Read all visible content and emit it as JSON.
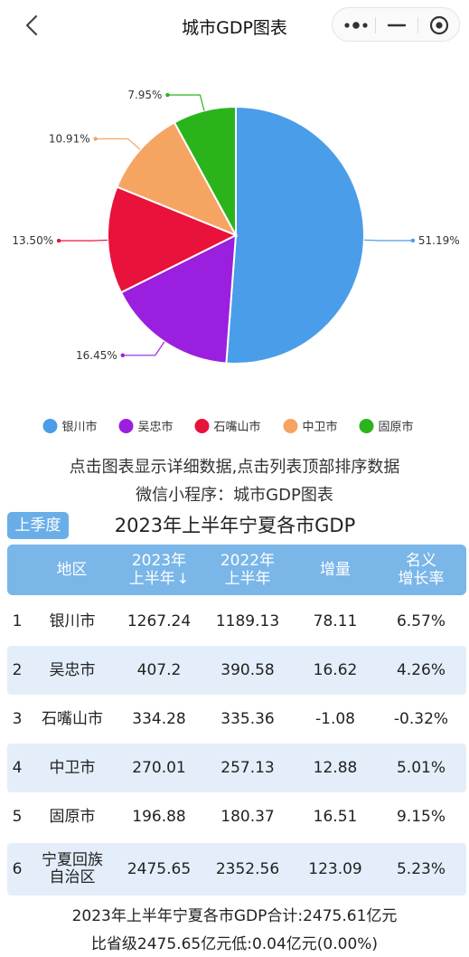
{
  "nav": {
    "title": "城市GDP图表"
  },
  "chart_data": {
    "type": "pie",
    "categories": [
      "银川市",
      "吴忠市",
      "石嘴山市",
      "中卫市",
      "固原市"
    ],
    "values": [
      51.19,
      16.45,
      13.5,
      10.91,
      7.95
    ],
    "labels": [
      "51.19%",
      "16.45%",
      "13.50%",
      "10.91%",
      "7.95%"
    ],
    "colors": [
      "#4a9de8",
      "#9b1fde",
      "#e8123b",
      "#f5a462",
      "#2bb31c"
    ],
    "legend_position": "bottom"
  },
  "hints": {
    "line1": "点击图表显示详细数据,点击列表顶部排序数据",
    "line2": "微信小程序：城市GDP图表"
  },
  "table": {
    "season_button": "上季度",
    "title": "2023年上半年宁夏各市GDP",
    "headers": {
      "region": "地区",
      "y2023_a": "2023年",
      "y2023_b": "上半年",
      "sort_arrow": "↓",
      "y2022_a": "2022年",
      "y2022_b": "上半年",
      "increase": "增量",
      "rate_a": "名义",
      "rate_b": "增长率"
    },
    "rows": [
      {
        "rank": "1",
        "region": "银川市",
        "y2023": "1267.24",
        "y2022": "1189.13",
        "increase": "78.11",
        "rate": "6.57%"
      },
      {
        "rank": "2",
        "region": "吴忠市",
        "y2023": "407.2",
        "y2022": "390.58",
        "increase": "16.62",
        "rate": "4.26%"
      },
      {
        "rank": "3",
        "region": "石嘴山市",
        "y2023": "334.28",
        "y2022": "335.36",
        "increase": "-1.08",
        "rate": "-0.32%"
      },
      {
        "rank": "4",
        "region": "中卫市",
        "y2023": "270.01",
        "y2022": "257.13",
        "increase": "12.88",
        "rate": "5.01%"
      },
      {
        "rank": "5",
        "region": "固原市",
        "y2023": "196.88",
        "y2022": "180.37",
        "increase": "16.51",
        "rate": "9.15%"
      },
      {
        "rank": "6",
        "region_a": "宁夏回族",
        "region_b": "自治区",
        "y2023": "2475.65",
        "y2022": "2352.56",
        "increase": "123.09",
        "rate": "5.23%"
      }
    ]
  },
  "summary": {
    "line1": "2023年上半年宁夏各市GDP合计:2475.61亿元",
    "line2": "比省级2475.65亿元低:0.04亿元(0.00%)"
  }
}
